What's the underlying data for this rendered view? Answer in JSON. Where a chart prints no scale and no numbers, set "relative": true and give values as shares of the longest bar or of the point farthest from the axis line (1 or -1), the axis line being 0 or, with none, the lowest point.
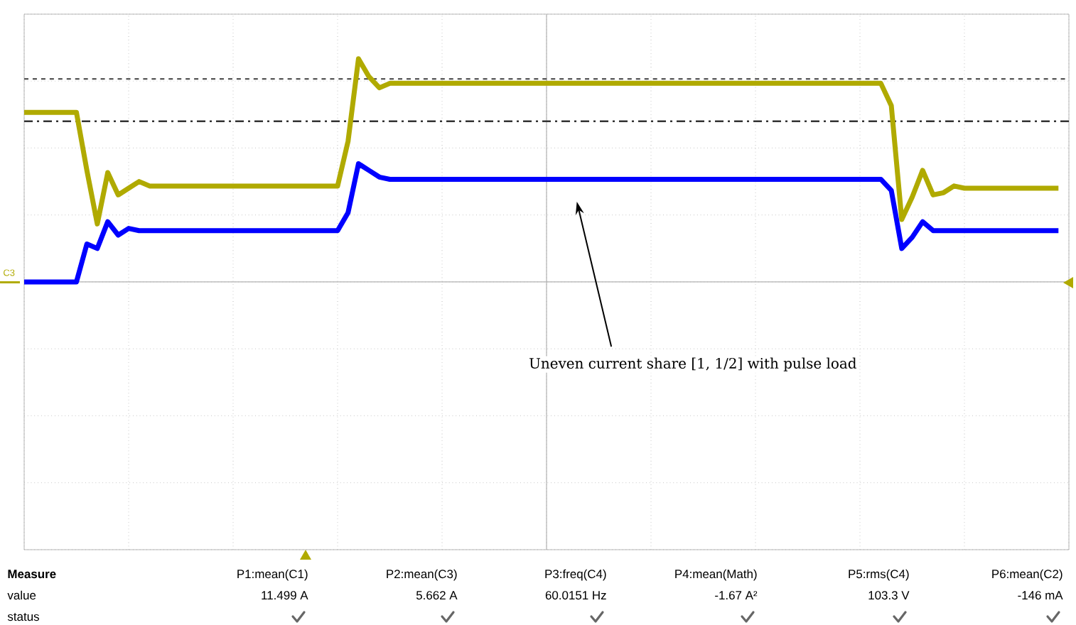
{
  "chart_data": {
    "type": "line",
    "relative": true,
    "grid": true,
    "categories": [
      null,
      null,
      null,
      null,
      null,
      null,
      null,
      null,
      null,
      null,
      null,
      null,
      null,
      null,
      null,
      null,
      null,
      null,
      null,
      null,
      null,
      null,
      null,
      null,
      null,
      null,
      null,
      null,
      null,
      null,
      null,
      null,
      null,
      null,
      null,
      null,
      null,
      null,
      null,
      null,
      null,
      null,
      null,
      null,
      null,
      null,
      null,
      null,
      null,
      null,
      null,
      null,
      null,
      null,
      null,
      null,
      null,
      null,
      null,
      null,
      null,
      null,
      null,
      null,
      null,
      null,
      null,
      null,
      null,
      null,
      null,
      null,
      null,
      null,
      null,
      null,
      null,
      null,
      null,
      null,
      null,
      null,
      null,
      null,
      null,
      null,
      null,
      null,
      null,
      null,
      null,
      null,
      null,
      null,
      null,
      null,
      null,
      null,
      null,
      null
    ],
    "series": [
      {
        "color": "#b0aa00",
        "values": [
          0.76,
          0.76,
          0.76,
          0.76,
          0.76,
          0.76,
          0.5,
          0.26,
          0.49,
          0.39,
          0.42,
          0.45,
          0.43,
          0.43,
          0.43,
          0.43,
          0.43,
          0.43,
          0.43,
          0.43,
          0.43,
          0.43,
          0.43,
          0.43,
          0.43,
          0.43,
          0.43,
          0.43,
          0.43,
          0.43,
          0.43,
          0.63,
          1.0,
          0.92,
          0.87,
          0.89,
          0.89,
          0.89,
          0.89,
          0.89,
          0.89,
          0.89,
          0.89,
          0.89,
          0.89,
          0.89,
          0.89,
          0.89,
          0.89,
          0.89,
          0.89,
          0.89,
          0.89,
          0.89,
          0.89,
          0.89,
          0.89,
          0.89,
          0.89,
          0.89,
          0.89,
          0.89,
          0.89,
          0.89,
          0.89,
          0.89,
          0.89,
          0.89,
          0.89,
          0.89,
          0.89,
          0.89,
          0.89,
          0.89,
          0.89,
          0.89,
          0.89,
          0.89,
          0.89,
          0.89,
          0.89,
          0.89,
          0.89,
          0.79,
          0.28,
          0.38,
          0.5,
          0.39,
          0.4,
          0.43,
          0.42,
          0.42,
          0.42,
          0.42,
          0.42,
          0.42,
          0.42,
          0.42,
          0.42,
          0.42
        ]
      },
      {
        "color": "#0000ff",
        "values": [
          0.0,
          0.0,
          0.0,
          0.0,
          0.0,
          0.0,
          0.17,
          0.15,
          0.27,
          0.21,
          0.24,
          0.23,
          0.23,
          0.23,
          0.23,
          0.23,
          0.23,
          0.23,
          0.23,
          0.23,
          0.23,
          0.23,
          0.23,
          0.23,
          0.23,
          0.23,
          0.23,
          0.23,
          0.23,
          0.23,
          0.23,
          0.31,
          0.53,
          0.5,
          0.47,
          0.46,
          0.46,
          0.46,
          0.46,
          0.46,
          0.46,
          0.46,
          0.46,
          0.46,
          0.46,
          0.46,
          0.46,
          0.46,
          0.46,
          0.46,
          0.46,
          0.46,
          0.46,
          0.46,
          0.46,
          0.46,
          0.46,
          0.46,
          0.46,
          0.46,
          0.46,
          0.46,
          0.46,
          0.46,
          0.46,
          0.46,
          0.46,
          0.46,
          0.46,
          0.46,
          0.46,
          0.46,
          0.46,
          0.46,
          0.46,
          0.46,
          0.46,
          0.46,
          0.46,
          0.46,
          0.46,
          0.46,
          0.46,
          0.41,
          0.15,
          0.2,
          0.27,
          0.23,
          0.23,
          0.23,
          0.23,
          0.23,
          0.23,
          0.23,
          0.23,
          0.23,
          0.23,
          0.23,
          0.23,
          0.23
        ]
      }
    ],
    "ref_lines": [
      {
        "axis": "y",
        "value": 0.91,
        "color": "#555555",
        "line_style": "dashed"
      },
      {
        "axis": "y",
        "value": 0.72,
        "color": "#333333",
        "line_style": "dashdot"
      }
    ],
    "annotations": [
      "Uneven current share [1, 1/2] with pulse load",
      "C3",
      "Measure",
      "value",
      "status",
      "P1:mean(C1)",
      "11.499 A",
      "P2:mean(C3)",
      "5.662 A",
      "P3:freq(C4)",
      "60.0151 Hz",
      "P4:mean(Math)",
      "-1.67 A²",
      "P5:rms(C4)",
      "103.3 V",
      "P6:mean(C2)",
      "-146 mA"
    ]
  }
}
